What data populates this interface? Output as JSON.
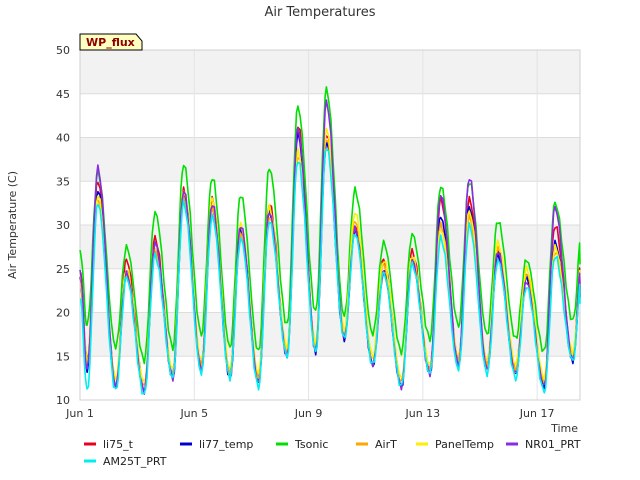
{
  "chart_data": {
    "type": "line",
    "title": "Air Temperatures",
    "xlabel": "Time",
    "ylabel": "Air Temperature (C)",
    "ylim": [
      10,
      50
    ],
    "yticks": [
      10,
      15,
      20,
      25,
      30,
      35,
      40,
      45,
      50
    ],
    "xlim_days": [
      1,
      18.5
    ],
    "xticks": [
      {
        "day": 1,
        "label": "Jun 1"
      },
      {
        "day": 5,
        "label": "Jun 5"
      },
      {
        "day": 9,
        "label": "Jun 9"
      },
      {
        "day": 13,
        "label": "Jun 13"
      },
      {
        "day": 17,
        "label": "Jun 17"
      }
    ],
    "grid": true,
    "legend_position": "bottom",
    "badge": "WP_flux",
    "x": [
      "Jun 1",
      "Jun 2",
      "Jun 3",
      "Jun 4",
      "Jun 5",
      "Jun 6",
      "Jun 7",
      "Jun 8",
      "Jun 9",
      "Jun 10",
      "Jun 11",
      "Jun 12",
      "Jun 13",
      "Jun 14",
      "Jun 15",
      "Jun 16",
      "Jun 17",
      "Jun 18"
    ],
    "daily_min_max_note_free": true,
    "series": [
      {
        "name": "li75_t",
        "color": "#e8001c",
        "min": [
          14.5,
          12.0,
          11.5,
          13.0,
          14.0,
          13.0,
          12.5,
          15.5,
          16.0,
          17.5,
          14.5,
          12.0,
          13.5,
          14.5,
          14.0,
          13.5,
          12.0,
          15.0
        ],
        "max": [
          35.0,
          26.0,
          28.5,
          34.0,
          33.0,
          30.0,
          32.5,
          41.5,
          40.5,
          30.0,
          26.0,
          27.0,
          33.0,
          33.0,
          27.0,
          24.5,
          30.0,
          30.0
        ]
      },
      {
        "name": "li77_temp",
        "color": "#0000cc",
        "min": [
          13.5,
          11.5,
          11.0,
          12.5,
          13.5,
          12.5,
          12.0,
          15.0,
          15.5,
          17.0,
          14.0,
          11.5,
          13.0,
          14.0,
          13.5,
          13.0,
          11.5,
          14.5
        ],
        "max": [
          34.0,
          25.0,
          27.5,
          33.5,
          32.0,
          29.5,
          31.5,
          40.5,
          39.5,
          29.5,
          25.0,
          26.0,
          31.0,
          32.0,
          26.5,
          24.0,
          28.0,
          29.0
        ]
      },
      {
        "name": "Tsonic",
        "color": "#00e000",
        "min": [
          18.5,
          16.0,
          14.5,
          16.0,
          17.5,
          16.0,
          15.5,
          18.5,
          20.0,
          19.5,
          17.5,
          15.5,
          17.0,
          18.5,
          17.5,
          17.0,
          15.5,
          19.0
        ],
        "max": [
          36.0,
          27.5,
          31.5,
          37.0,
          35.5,
          33.5,
          36.5,
          43.5,
          45.5,
          34.0,
          28.0,
          29.0,
          34.5,
          35.0,
          30.5,
          26.0,
          32.5,
          32.0
        ]
      },
      {
        "name": "AirT",
        "color": "#ffa500",
        "min": [
          14.0,
          12.0,
          11.5,
          13.0,
          14.0,
          13.0,
          12.5,
          15.5,
          16.0,
          17.5,
          14.5,
          12.0,
          13.5,
          14.5,
          14.0,
          13.5,
          12.0,
          15.0
        ],
        "max": [
          33.0,
          24.5,
          27.0,
          33.0,
          32.0,
          29.0,
          31.0,
          38.0,
          40.0,
          30.5,
          25.5,
          26.0,
          30.0,
          31.0,
          27.5,
          24.5,
          27.0,
          28.0
        ]
      },
      {
        "name": "PanelTemp",
        "color": "#ffee00",
        "min": [
          14.5,
          12.5,
          12.0,
          13.5,
          14.5,
          13.5,
          13.0,
          16.0,
          16.5,
          18.0,
          15.0,
          12.5,
          14.0,
          15.0,
          14.5,
          14.0,
          12.5,
          15.5
        ],
        "max": [
          33.5,
          25.0,
          27.5,
          34.0,
          33.0,
          30.0,
          32.0,
          38.5,
          41.0,
          31.5,
          26.0,
          26.5,
          29.5,
          31.5,
          28.0,
          25.0,
          27.5,
          28.5
        ]
      },
      {
        "name": "NR01_PRT",
        "color": "#8b2be2",
        "min": [
          13.5,
          11.5,
          11.0,
          12.5,
          13.5,
          12.5,
          12.0,
          15.0,
          15.5,
          17.0,
          14.0,
          11.5,
          13.0,
          14.0,
          13.5,
          13.0,
          11.5,
          14.5
        ],
        "max": [
          36.5,
          24.5,
          28.0,
          34.0,
          32.5,
          30.0,
          31.5,
          41.0,
          44.0,
          29.5,
          24.5,
          26.0,
          33.5,
          35.5,
          27.0,
          23.5,
          32.0,
          29.0
        ]
      },
      {
        "name": "AM25T_PRT",
        "color": "#00eeee",
        "min": [
          11.0,
          11.0,
          10.5,
          12.5,
          13.0,
          12.5,
          11.5,
          15.0,
          15.5,
          17.0,
          14.0,
          11.5,
          13.0,
          13.5,
          13.0,
          12.5,
          11.0,
          14.5
        ],
        "max": [
          32.5,
          24.0,
          26.5,
          32.5,
          31.0,
          28.5,
          30.5,
          37.5,
          39.0,
          29.0,
          24.5,
          25.5,
          28.5,
          30.0,
          26.0,
          23.0,
          26.5,
          27.5
        ]
      }
    ]
  }
}
